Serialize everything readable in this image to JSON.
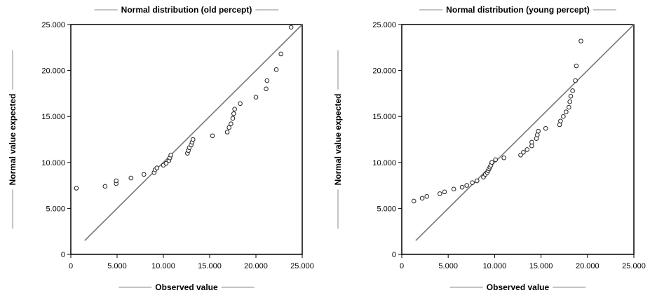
{
  "chart_data": [
    {
      "type": "scatter",
      "title": "Normal distribution (old percept)",
      "xlabel": "Observed value",
      "ylabel": "Normal value expected",
      "xlim": [
        0,
        25000
      ],
      "ylim": [
        0,
        25000
      ],
      "x_ticks": [
        "0",
        "5.000",
        "10.000",
        "15.000",
        "20.000",
        "25.000"
      ],
      "y_ticks": [
        "0",
        "5.000",
        "10.000",
        "15.000",
        "20.000",
        "25.000"
      ],
      "reference_line": {
        "from": [
          1500,
          1500
        ],
        "to": [
          25000,
          25000
        ]
      },
      "series": [
        {
          "points": [
            [
              600,
              7200
            ],
            [
              3700,
              7400
            ],
            [
              4900,
              7700
            ],
            [
              4900,
              8000
            ],
            [
              6500,
              8300
            ],
            [
              7900,
              8700
            ],
            [
              9000,
              8900
            ],
            [
              9100,
              9200
            ],
            [
              9300,
              9400
            ],
            [
              10000,
              9700
            ],
            [
              10300,
              9900
            ],
            [
              10600,
              10200
            ],
            [
              10700,
              10500
            ],
            [
              10800,
              10800
            ],
            [
              12600,
              11000
            ],
            [
              12700,
              11300
            ],
            [
              12800,
              11600
            ],
            [
              13000,
              11900
            ],
            [
              13100,
              12200
            ],
            [
              13200,
              12500
            ],
            [
              15300,
              12900
            ],
            [
              16900,
              13300
            ],
            [
              17100,
              13800
            ],
            [
              17300,
              14200
            ],
            [
              17500,
              14800
            ],
            [
              17600,
              15300
            ],
            [
              17700,
              15800
            ],
            [
              18300,
              16400
            ],
            [
              20000,
              17100
            ],
            [
              21100,
              18000
            ],
            [
              21200,
              18900
            ],
            [
              22200,
              20100
            ],
            [
              22700,
              21800
            ],
            [
              23800,
              24700
            ]
          ]
        }
      ]
    },
    {
      "type": "scatter",
      "title": "Normal distribution (young percept)",
      "xlabel": "Observed value",
      "ylabel": "Normal value expected",
      "xlim": [
        0,
        25000
      ],
      "ylim": [
        0,
        25000
      ],
      "x_ticks": [
        "0",
        "5.000",
        "10.000",
        "15.000",
        "20.000",
        "25.000"
      ],
      "y_ticks": [
        "0",
        "5.000",
        "10.000",
        "15.000",
        "20.000",
        "25.000"
      ],
      "reference_line": {
        "from": [
          1500,
          1500
        ],
        "to": [
          25000,
          25000
        ]
      },
      "series": [
        {
          "points": [
            [
              1300,
              5800
            ],
            [
              2200,
              6100
            ],
            [
              2700,
              6300
            ],
            [
              4100,
              6600
            ],
            [
              4600,
              6800
            ],
            [
              5600,
              7100
            ],
            [
              6500,
              7300
            ],
            [
              7000,
              7500
            ],
            [
              7600,
              7800
            ],
            [
              8100,
              8000
            ],
            [
              8800,
              8400
            ],
            [
              9000,
              8700
            ],
            [
              9200,
              8900
            ],
            [
              9300,
              9100
            ],
            [
              9400,
              9300
            ],
            [
              9500,
              9500
            ],
            [
              9600,
              9700
            ],
            [
              9700,
              10000
            ],
            [
              10100,
              10300
            ],
            [
              11000,
              10500
            ],
            [
              12800,
              10800
            ],
            [
              13100,
              11100
            ],
            [
              13500,
              11400
            ],
            [
              14000,
              11800
            ],
            [
              14000,
              12200
            ],
            [
              14500,
              12600
            ],
            [
              14600,
              13000
            ],
            [
              14700,
              13400
            ],
            [
              15500,
              13700
            ],
            [
              17000,
              14100
            ],
            [
              17100,
              14500
            ],
            [
              17400,
              15000
            ],
            [
              17700,
              15500
            ],
            [
              18000,
              16000
            ],
            [
              18100,
              16600
            ],
            [
              18200,
              17200
            ],
            [
              18400,
              17800
            ],
            [
              18700,
              18900
            ],
            [
              18800,
              20500
            ],
            [
              19300,
              23200
            ]
          ]
        }
      ]
    }
  ]
}
